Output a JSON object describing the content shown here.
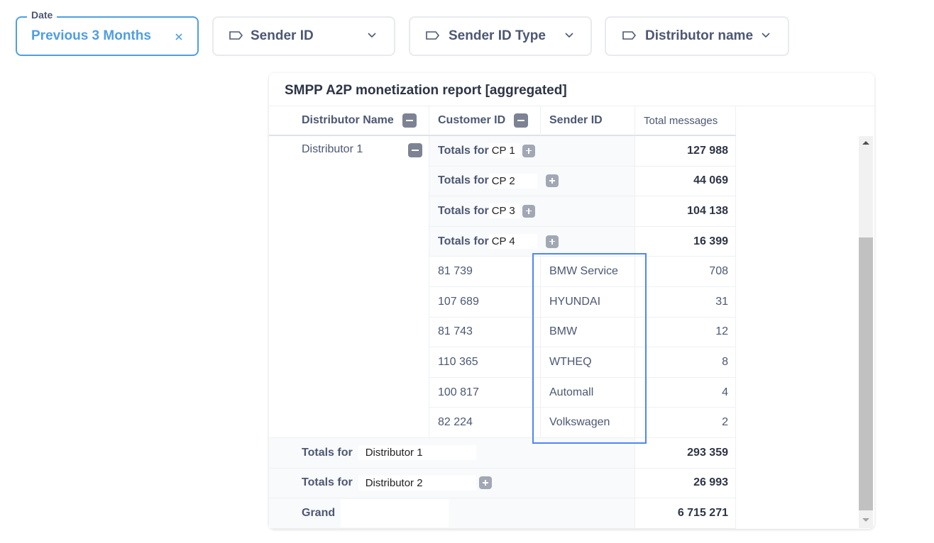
{
  "filters": [
    {
      "label": "Date",
      "value": "Previous 3 Months"
    },
    {
      "value": "Sender ID"
    },
    {
      "value": "Sender ID Type"
    },
    {
      "value": "Distributor name"
    }
  ],
  "report": {
    "title": "SMPP A2P monetization report [aggregated]",
    "columns": [
      "Distributor Name",
      "Customer ID",
      "Sender ID",
      "Total messages"
    ],
    "distributor": "Distributor 1",
    "group_rows": [
      {
        "prefix": "Totals for",
        "name": "CP 1",
        "total": "127 988"
      },
      {
        "prefix": "Totals for",
        "name": "CP 2",
        "total": "44 069"
      },
      {
        "prefix": "Totals for",
        "name": "CP 3",
        "total": "104 138"
      },
      {
        "prefix": "Totals for",
        "name": "CP 4",
        "total": "16 399"
      }
    ],
    "detail_rows": [
      {
        "customer_id": "81 739",
        "sender_id": "BMW Service",
        "total": "708"
      },
      {
        "customer_id": "107 689",
        "sender_id": "HYUNDAI",
        "total": "31"
      },
      {
        "customer_id": "81 743",
        "sender_id": "BMW",
        "total": "12"
      },
      {
        "customer_id": "110 365",
        "sender_id": "WTHEQ",
        "total": "8"
      },
      {
        "customer_id": "100 817",
        "sender_id": "Automall",
        "total": "4"
      },
      {
        "customer_id": "82 224",
        "sender_id": "Volkswagen",
        "total": "2"
      }
    ],
    "total_rows": [
      {
        "prefix": "Totals for",
        "name": "Distributor 1",
        "total": "293 359"
      },
      {
        "prefix": "Totals for",
        "name": "Distributor 2",
        "total": "26 993"
      },
      {
        "prefix": "Grand",
        "total": "6 715 271"
      }
    ]
  }
}
